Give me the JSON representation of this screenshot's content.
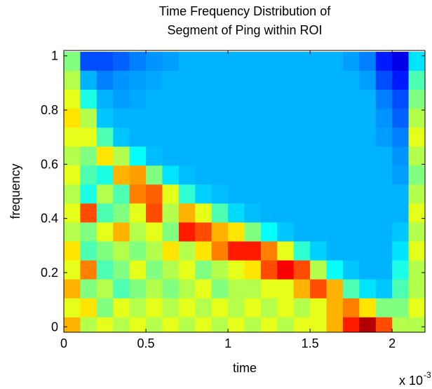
{
  "chart_data": {
    "type": "heatmap",
    "title": [
      "Time Frequency Distribution of",
      "Segment of Ping within ROI"
    ],
    "xlabel": "time",
    "ylabel": "frequency",
    "x_exponent": {
      "base": "x 10",
      "power": "-3"
    },
    "colormap": "jet",
    "x": [
      5e-05,
      0.00015,
      0.00025,
      0.00035,
      0.00045,
      0.00055,
      0.00065,
      0.00075,
      0.00085,
      0.00095,
      0.00105,
      0.00115,
      0.00125,
      0.00135,
      0.00145,
      0.00155,
      0.00165,
      0.00175,
      0.00185,
      0.00195,
      0.00205,
      0.00215
    ],
    "y": [
      0.98,
      0.91,
      0.84,
      0.77,
      0.7,
      0.63,
      0.56,
      0.49,
      0.42,
      0.35,
      0.28,
      0.21,
      0.14,
      0.07,
      0.0
    ],
    "z": [
      [
        0.5,
        0.2,
        0.2,
        0.22,
        0.25,
        0.27,
        0.28,
        0.3,
        0.3,
        0.3,
        0.3,
        0.3,
        0.3,
        0.3,
        0.3,
        0.3,
        0.3,
        0.28,
        0.25,
        0.15,
        0.1,
        0.35
      ],
      [
        0.55,
        0.3,
        0.25,
        0.27,
        0.28,
        0.29,
        0.3,
        0.3,
        0.3,
        0.3,
        0.3,
        0.3,
        0.3,
        0.3,
        0.3,
        0.3,
        0.3,
        0.3,
        0.28,
        0.2,
        0.15,
        0.45
      ],
      [
        0.6,
        0.4,
        0.3,
        0.28,
        0.29,
        0.3,
        0.3,
        0.3,
        0.3,
        0.3,
        0.3,
        0.3,
        0.3,
        0.3,
        0.3,
        0.3,
        0.3,
        0.3,
        0.3,
        0.25,
        0.2,
        0.5
      ],
      [
        0.65,
        0.55,
        0.32,
        0.3,
        0.3,
        0.3,
        0.3,
        0.3,
        0.3,
        0.3,
        0.3,
        0.3,
        0.3,
        0.3,
        0.3,
        0.3,
        0.3,
        0.3,
        0.3,
        0.27,
        0.22,
        0.55
      ],
      [
        0.6,
        0.6,
        0.45,
        0.32,
        0.3,
        0.3,
        0.3,
        0.3,
        0.3,
        0.3,
        0.3,
        0.3,
        0.3,
        0.3,
        0.3,
        0.3,
        0.3,
        0.3,
        0.3,
        0.28,
        0.25,
        0.6
      ],
      [
        0.55,
        0.5,
        0.65,
        0.55,
        0.38,
        0.31,
        0.3,
        0.3,
        0.3,
        0.3,
        0.3,
        0.3,
        0.3,
        0.3,
        0.3,
        0.3,
        0.3,
        0.3,
        0.3,
        0.3,
        0.27,
        0.55
      ],
      [
        0.6,
        0.45,
        0.4,
        0.7,
        0.72,
        0.5,
        0.35,
        0.31,
        0.3,
        0.3,
        0.3,
        0.3,
        0.3,
        0.3,
        0.3,
        0.3,
        0.3,
        0.3,
        0.3,
        0.3,
        0.28,
        0.5
      ],
      [
        0.55,
        0.4,
        0.55,
        0.45,
        0.75,
        0.78,
        0.6,
        0.42,
        0.33,
        0.31,
        0.3,
        0.3,
        0.3,
        0.3,
        0.3,
        0.3,
        0.3,
        0.3,
        0.3,
        0.3,
        0.3,
        0.55
      ],
      [
        0.6,
        0.8,
        0.45,
        0.5,
        0.6,
        0.8,
        0.55,
        0.7,
        0.6,
        0.45,
        0.34,
        0.31,
        0.3,
        0.3,
        0.3,
        0.3,
        0.3,
        0.3,
        0.3,
        0.3,
        0.3,
        0.6
      ],
      [
        0.55,
        0.5,
        0.6,
        0.7,
        0.55,
        0.6,
        0.5,
        0.85,
        0.8,
        0.7,
        0.65,
        0.5,
        0.38,
        0.32,
        0.3,
        0.3,
        0.3,
        0.3,
        0.3,
        0.3,
        0.32,
        0.55
      ],
      [
        0.65,
        0.45,
        0.5,
        0.55,
        0.5,
        0.55,
        0.65,
        0.55,
        0.65,
        0.75,
        0.85,
        0.85,
        0.75,
        0.6,
        0.42,
        0.33,
        0.3,
        0.3,
        0.3,
        0.3,
        0.35,
        0.6
      ],
      [
        0.6,
        0.75,
        0.45,
        0.5,
        0.6,
        0.5,
        0.55,
        0.6,
        0.5,
        0.55,
        0.6,
        0.65,
        0.8,
        0.88,
        0.8,
        0.55,
        0.38,
        0.32,
        0.3,
        0.3,
        0.4,
        0.55
      ],
      [
        0.7,
        0.5,
        0.55,
        0.45,
        0.5,
        0.55,
        0.5,
        0.55,
        0.6,
        0.5,
        0.55,
        0.55,
        0.6,
        0.6,
        0.7,
        0.8,
        0.7,
        0.45,
        0.35,
        0.32,
        0.45,
        0.55
      ],
      [
        0.6,
        0.65,
        0.5,
        0.6,
        0.55,
        0.6,
        0.55,
        0.6,
        0.55,
        0.6,
        0.55,
        0.6,
        0.55,
        0.6,
        0.55,
        0.6,
        0.7,
        0.75,
        0.65,
        0.5,
        0.5,
        0.6
      ],
      [
        0.7,
        0.55,
        0.6,
        0.55,
        0.6,
        0.55,
        0.6,
        0.55,
        0.6,
        0.55,
        0.6,
        0.55,
        0.6,
        0.55,
        0.6,
        0.6,
        0.7,
        0.85,
        0.95,
        0.8,
        0.55,
        0.55
      ]
    ],
    "xlim": [
      0,
      0.0022
    ],
    "ylim": [
      -0.02,
      1.02
    ],
    "xticks": [
      {
        "value": 0,
        "label": "0"
      },
      {
        "value": 0.0005,
        "label": "0.5"
      },
      {
        "value": 0.001,
        "label": "1"
      },
      {
        "value": 0.0015,
        "label": "1.5"
      },
      {
        "value": 0.002,
        "label": "2"
      }
    ],
    "yticks": [
      0,
      0.2,
      0.4,
      0.6,
      0.8,
      1
    ]
  }
}
